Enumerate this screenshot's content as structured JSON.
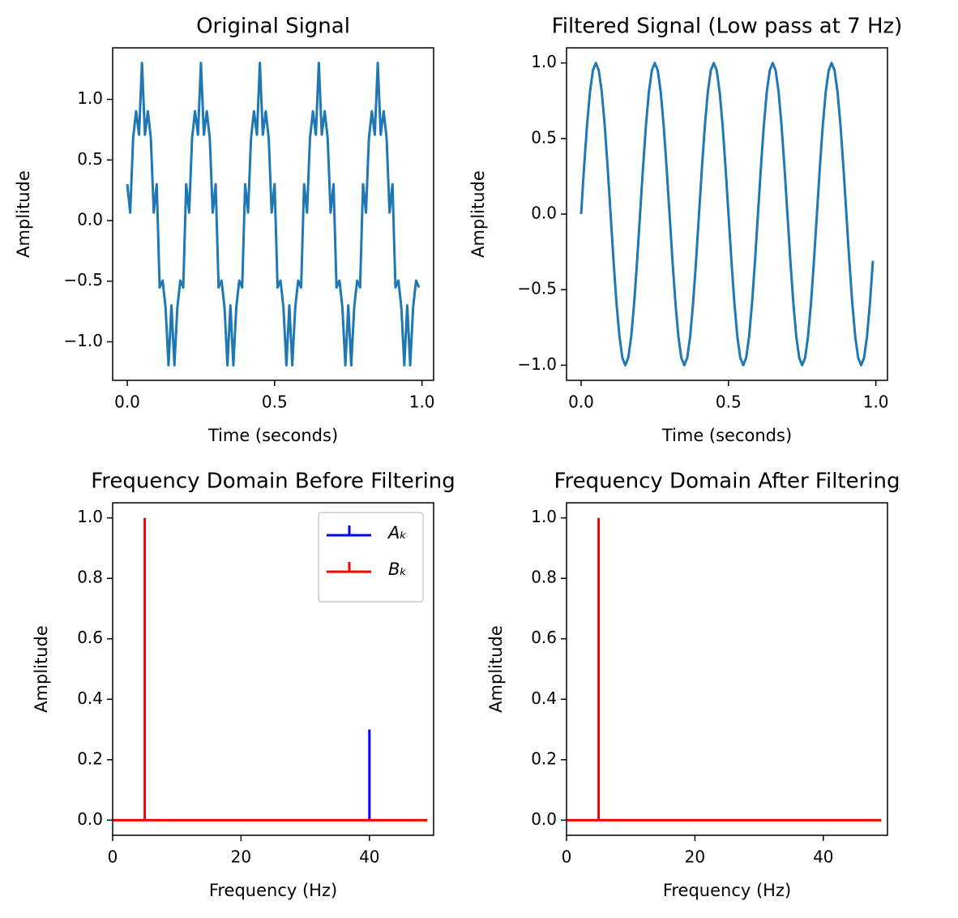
{
  "chart_data": [
    {
      "type": "line",
      "title": "Original Signal",
      "xlabel": "Time (seconds)",
      "ylabel": "Amplitude",
      "x": [
        0,
        0.01,
        0.02,
        0.03,
        0.04,
        0.05,
        0.06,
        0.07,
        0.08,
        0.09,
        0.1,
        0.11,
        0.12,
        0.13,
        0.14,
        0.15,
        0.16,
        0.17,
        0.18,
        0.19,
        0.2,
        0.21,
        0.22,
        0.23,
        0.24,
        0.25,
        0.26,
        0.27,
        0.28,
        0.29,
        0.3,
        0.31,
        0.32,
        0.33,
        0.34,
        0.35,
        0.36,
        0.37,
        0.38,
        0.39,
        0.4,
        0.41,
        0.42,
        0.43,
        0.44,
        0.45,
        0.46,
        0.47,
        0.48,
        0.49,
        0.5,
        0.51,
        0.52,
        0.53,
        0.54,
        0.55,
        0.56,
        0.57,
        0.58,
        0.59,
        0.6,
        0.61,
        0.62,
        0.63,
        0.64,
        0.65,
        0.66,
        0.67,
        0.68,
        0.69,
        0.7,
        0.71,
        0.72,
        0.73,
        0.74,
        0.75,
        0.76,
        0.77,
        0.78,
        0.79,
        0.8,
        0.81,
        0.82,
        0.83,
        0.84,
        0.85,
        0.86,
        0.87,
        0.88,
        0.89,
        0.9,
        0.91,
        0.92,
        0.93,
        0.94,
        0.95,
        0.96,
        0.97,
        0.98,
        0.99
      ],
      "series": [
        {
          "color": "#1f77b4",
          "values": [
            0.3,
            0.066,
            0.68,
            0.902,
            0.708,
            1.3,
            0.708,
            0.902,
            0.68,
            0.066,
            0.3,
            -0.552,
            -0.495,
            -0.716,
            -1.194,
            -0.7,
            -1.194,
            -0.716,
            -0.495,
            -0.552,
            0.3,
            0.066,
            0.68,
            0.902,
            0.708,
            1.3,
            0.708,
            0.902,
            0.68,
            0.066,
            0.3,
            -0.552,
            -0.495,
            -0.716,
            -1.194,
            -0.7,
            -1.194,
            -0.716,
            -0.495,
            -0.552,
            0.3,
            0.066,
            0.68,
            0.902,
            0.708,
            1.3,
            0.708,
            0.902,
            0.68,
            0.066,
            0.3,
            -0.552,
            -0.495,
            -0.716,
            -1.194,
            -0.7,
            -1.194,
            -0.716,
            -0.495,
            -0.552,
            0.3,
            0.066,
            0.68,
            0.902,
            0.708,
            1.3,
            0.708,
            0.902,
            0.68,
            0.066,
            0.3,
            -0.552,
            -0.495,
            -0.716,
            -1.194,
            -0.7,
            -1.194,
            -0.716,
            -0.495,
            -0.552,
            0.3,
            0.066,
            0.68,
            0.902,
            0.708,
            1.3,
            0.708,
            0.902,
            0.68,
            0.066,
            0.3,
            -0.552,
            -0.495,
            -0.716,
            -1.194,
            -0.7,
            -1.194,
            -0.716,
            -0.495,
            -0.552
          ]
        }
      ],
      "xlim": [
        -0.0495,
        1.0395
      ],
      "ylim": [
        -1.318,
        1.425
      ],
      "xticks": [
        {
          "value": 0,
          "label": "0.0"
        },
        {
          "value": 0.5,
          "label": "0.5"
        },
        {
          "value": 1,
          "label": "1.0"
        }
      ],
      "yticks": [
        {
          "value": -1,
          "label": "−1.0"
        },
        {
          "value": -0.5,
          "label": "−0.5"
        },
        {
          "value": 0,
          "label": "0.0"
        },
        {
          "value": 0.5,
          "label": "0.5"
        },
        {
          "value": 1,
          "label": "1.0"
        }
      ]
    },
    {
      "type": "line",
      "title": "Filtered Signal (Low pass at 7 Hz)",
      "xlabel": "Time (seconds)",
      "ylabel": "Amplitude",
      "x": [
        0,
        0.01,
        0.02,
        0.03,
        0.04,
        0.05,
        0.06,
        0.07,
        0.08,
        0.09,
        0.1,
        0.11,
        0.12,
        0.13,
        0.14,
        0.15,
        0.16,
        0.17,
        0.18,
        0.19,
        0.2,
        0.21,
        0.22,
        0.23,
        0.24,
        0.25,
        0.26,
        0.27,
        0.28,
        0.29,
        0.3,
        0.31,
        0.32,
        0.33,
        0.34,
        0.35,
        0.36,
        0.37,
        0.38,
        0.39,
        0.4,
        0.41,
        0.42,
        0.43,
        0.44,
        0.45,
        0.46,
        0.47,
        0.48,
        0.49,
        0.5,
        0.51,
        0.52,
        0.53,
        0.54,
        0.55,
        0.56,
        0.57,
        0.58,
        0.59,
        0.6,
        0.61,
        0.62,
        0.63,
        0.64,
        0.65,
        0.66,
        0.67,
        0.68,
        0.69,
        0.7,
        0.71,
        0.72,
        0.73,
        0.74,
        0.75,
        0.76,
        0.77,
        0.78,
        0.79,
        0.8,
        0.81,
        0.82,
        0.83,
        0.84,
        0.85,
        0.86,
        0.87,
        0.88,
        0.89,
        0.9,
        0.91,
        0.92,
        0.93,
        0.94,
        0.95,
        0.96,
        0.97,
        0.98,
        0.99
      ],
      "series": [
        {
          "color": "#1f77b4",
          "values": [
            0,
            0.309,
            0.588,
            0.809,
            0.951,
            1,
            0.951,
            0.809,
            0.588,
            0.309,
            0,
            -0.309,
            -0.588,
            -0.809,
            -0.951,
            -1,
            -0.951,
            -0.809,
            -0.588,
            -0.309,
            0,
            0.309,
            0.588,
            0.809,
            0.951,
            1,
            0.951,
            0.809,
            0.588,
            0.309,
            0,
            -0.309,
            -0.588,
            -0.809,
            -0.951,
            -1,
            -0.951,
            -0.809,
            -0.588,
            -0.309,
            0,
            0.309,
            0.588,
            0.809,
            0.951,
            1,
            0.951,
            0.809,
            0.588,
            0.309,
            0,
            -0.309,
            -0.588,
            -0.809,
            -0.951,
            -1,
            -0.951,
            -0.809,
            -0.588,
            -0.309,
            0,
            0.309,
            0.588,
            0.809,
            0.951,
            1,
            0.951,
            0.809,
            0.588,
            0.309,
            0,
            -0.309,
            -0.588,
            -0.809,
            -0.951,
            -1,
            -0.951,
            -0.809,
            -0.588,
            -0.309,
            0,
            0.309,
            0.588,
            0.809,
            0.951,
            1,
            0.951,
            0.809,
            0.588,
            0.309,
            0,
            -0.309,
            -0.588,
            -0.809,
            -0.951,
            -1,
            -0.951,
            -0.809,
            -0.588,
            -0.309
          ]
        }
      ],
      "xlim": [
        -0.0495,
        1.0395
      ],
      "ylim": [
        -1.1,
        1.1
      ],
      "xticks": [
        {
          "value": 0,
          "label": "0.0"
        },
        {
          "value": 0.5,
          "label": "0.5"
        },
        {
          "value": 1,
          "label": "1.0"
        }
      ],
      "yticks": [
        {
          "value": -1,
          "label": "−1.0"
        },
        {
          "value": -0.5,
          "label": "−0.5"
        },
        {
          "value": 0,
          "label": "0.0"
        },
        {
          "value": 0.5,
          "label": "0.5"
        },
        {
          "value": 1,
          "label": "1.0"
        }
      ]
    },
    {
      "type": "stem",
      "title": "Frequency Domain Before Filtering",
      "xlabel": "Frequency (Hz)",
      "ylabel": "Amplitude",
      "x": [
        0,
        1,
        2,
        3,
        4,
        5,
        6,
        7,
        8,
        9,
        10,
        11,
        12,
        13,
        14,
        15,
        16,
        17,
        18,
        19,
        20,
        21,
        22,
        23,
        24,
        25,
        26,
        27,
        28,
        29,
        30,
        31,
        32,
        33,
        34,
        35,
        36,
        37,
        38,
        39,
        40,
        41,
        42,
        43,
        44,
        45,
        46,
        47,
        48,
        49
      ],
      "series": [
        {
          "name": "Aₖ",
          "color": "#0000ff",
          "values": [
            0,
            0,
            0,
            0,
            0,
            0,
            0,
            0,
            0,
            0,
            0,
            0,
            0,
            0,
            0,
            0,
            0,
            0,
            0,
            0,
            0,
            0,
            0,
            0,
            0,
            0,
            0,
            0,
            0,
            0,
            0,
            0,
            0,
            0,
            0,
            0,
            0,
            0,
            0,
            0,
            0.3,
            0,
            0,
            0,
            0,
            0,
            0,
            0,
            0,
            0
          ]
        },
        {
          "name": "Bₖ",
          "color": "#ff0000",
          "values": [
            0,
            0,
            0,
            0,
            0,
            1,
            0,
            0,
            0,
            0,
            0,
            0,
            0,
            0,
            0,
            0,
            0,
            0,
            0,
            0,
            0,
            0,
            0,
            0,
            0,
            0,
            0,
            0,
            0,
            0,
            0,
            0,
            0,
            0,
            0,
            0,
            0,
            0,
            0,
            0,
            0,
            0,
            0,
            0,
            0,
            0,
            0,
            0,
            0,
            0
          ]
        }
      ],
      "baseline_color": "#ff0000",
      "legend": "upper right",
      "xlim": [
        0,
        50
      ],
      "ylim": [
        -0.05,
        1.05
      ],
      "xticks": [
        0,
        20,
        40
      ],
      "yticks": [
        {
          "value": 0,
          "label": "0.0"
        },
        {
          "value": 0.2,
          "label": "0.2"
        },
        {
          "value": 0.4,
          "label": "0.4"
        },
        {
          "value": 0.6,
          "label": "0.6"
        },
        {
          "value": 0.8,
          "label": "0.8"
        },
        {
          "value": 1,
          "label": "1.0"
        }
      ]
    },
    {
      "type": "stem",
      "title": "Frequency Domain After Filtering",
      "xlabel": "Frequency (Hz)",
      "ylabel": "Amplitude",
      "x": [
        0,
        1,
        2,
        3,
        4,
        5,
        6,
        7,
        8,
        9,
        10,
        11,
        12,
        13,
        14,
        15,
        16,
        17,
        18,
        19,
        20,
        21,
        22,
        23,
        24,
        25,
        26,
        27,
        28,
        29,
        30,
        31,
        32,
        33,
        34,
        35,
        36,
        37,
        38,
        39,
        40,
        41,
        42,
        43,
        44,
        45,
        46,
        47,
        48,
        49
      ],
      "series": [
        {
          "color": "#0000ff",
          "values": [
            0,
            0,
            0,
            0,
            0,
            0,
            0,
            0,
            0,
            0,
            0,
            0,
            0,
            0,
            0,
            0,
            0,
            0,
            0,
            0,
            0,
            0,
            0,
            0,
            0,
            0,
            0,
            0,
            0,
            0,
            0,
            0,
            0,
            0,
            0,
            0,
            0,
            0,
            0,
            0,
            0,
            0,
            0,
            0,
            0,
            0,
            0,
            0,
            0,
            0
          ]
        },
        {
          "color": "#ff0000",
          "values": [
            0,
            0,
            0,
            0,
            0,
            1,
            0,
            0,
            0,
            0,
            0,
            0,
            0,
            0,
            0,
            0,
            0,
            0,
            0,
            0,
            0,
            0,
            0,
            0,
            0,
            0,
            0,
            0,
            0,
            0,
            0,
            0,
            0,
            0,
            0,
            0,
            0,
            0,
            0,
            0,
            0,
            0,
            0,
            0,
            0,
            0,
            0,
            0,
            0,
            0
          ]
        }
      ],
      "baseline_color": "#ff0000",
      "xlim": [
        0,
        50
      ],
      "ylim": [
        -0.05,
        1.05
      ],
      "xticks": [
        0,
        20,
        40
      ],
      "yticks": [
        {
          "value": 0,
          "label": "0.0"
        },
        {
          "value": 0.2,
          "label": "0.2"
        },
        {
          "value": 0.4,
          "label": "0.4"
        },
        {
          "value": 0.6,
          "label": "0.6"
        },
        {
          "value": 0.8,
          "label": "0.8"
        },
        {
          "value": 1,
          "label": "1.0"
        }
      ]
    }
  ]
}
